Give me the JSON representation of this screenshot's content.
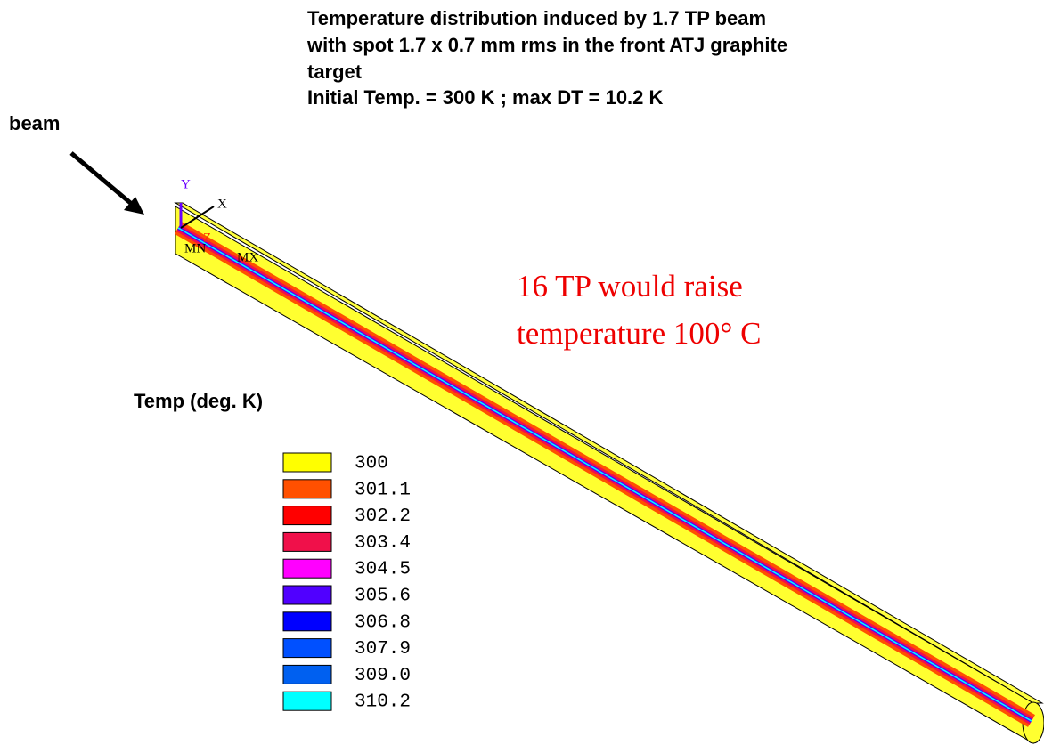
{
  "title_lines": [
    "Temperature distribution induced by 1.7 TP beam",
    "with spot  1.7 x 0.7 mm rms in the front ATJ graphite",
    "target",
    "Initial Temp. = 300 K  ; max DT = 10.2 K"
  ],
  "beam_label": "beam",
  "annotation_lines": [
    "16 TP would raise",
    "temperature 100° C"
  ],
  "axes": {
    "y": "Y",
    "x": "X",
    "z": "Z",
    "min": "MN",
    "max": "MX"
  },
  "legend": {
    "title": "Temp (deg. K)",
    "entries": [
      {
        "label": "300",
        "color": "#ffff00"
      },
      {
        "label": "301.1",
        "color": "#ff5000"
      },
      {
        "label": "302.2",
        "color": "#ff0000"
      },
      {
        "label": "303.4",
        "color": "#f0104a"
      },
      {
        "label": "304.5",
        "color": "#ff00ff"
      },
      {
        "label": "305.6",
        "color": "#5000ff"
      },
      {
        "label": "306.8",
        "color": "#0000ff"
      },
      {
        "label": "307.9",
        "color": "#0050ff"
      },
      {
        "label": "309.0",
        "color": "#0060f0"
      },
      {
        "label": "310.2",
        "color": "#00ffff"
      }
    ]
  }
}
